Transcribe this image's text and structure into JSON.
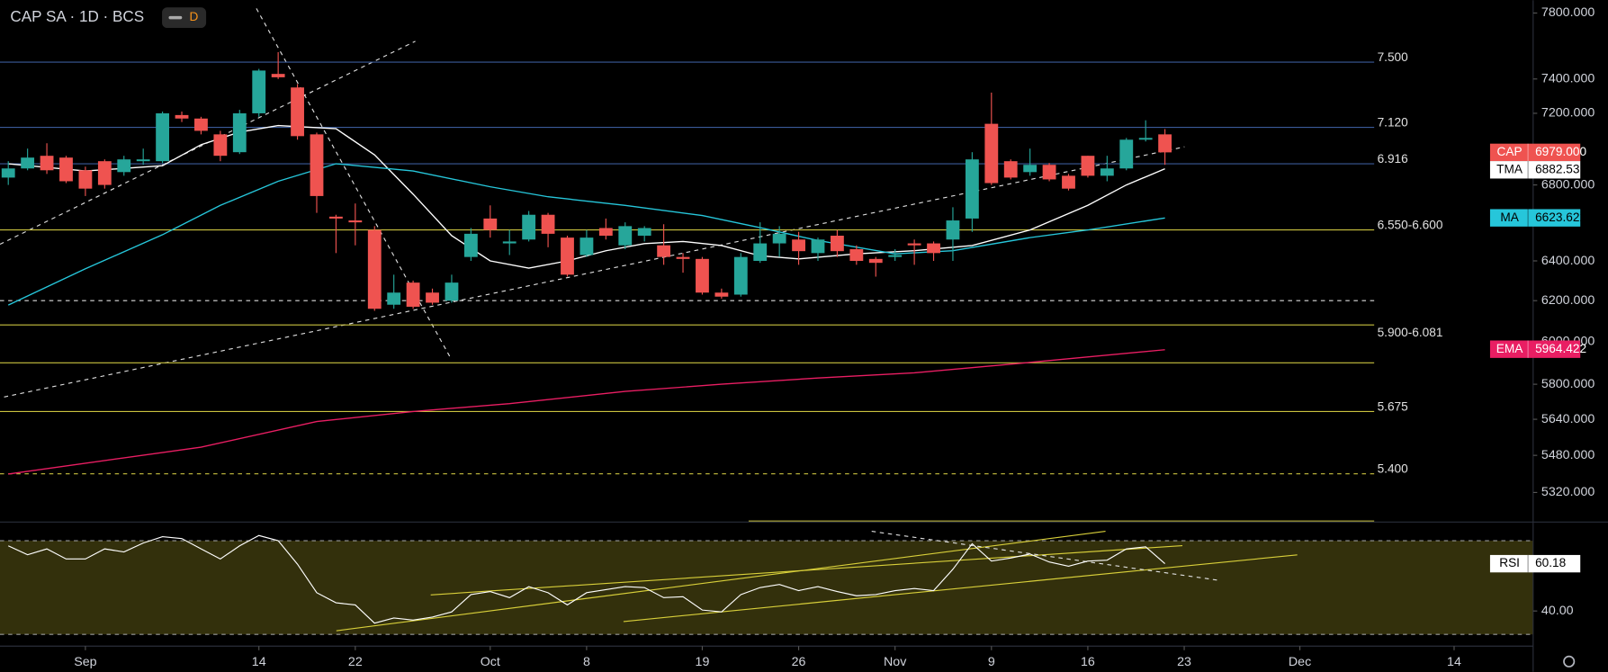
{
  "chart_data": {
    "type": "candlestick",
    "title": "CAP SA · 1D · BCS",
    "badge": "D",
    "up_color": "#26a69a",
    "down_color": "#ef5350",
    "log_scale": true,
    "open": [
      6840,
      6890,
      6960,
      6950,
      6880,
      6930,
      6870,
      6930,
      6930,
      7190,
      7170,
      7080,
      6980,
      7200,
      7430,
      7350,
      7080,
      6630,
      6610,
      6560,
      6180,
      6290,
      6240,
      6200,
      6420,
      6620,
      6490,
      6510,
      6640,
      6520,
      6430,
      6570,
      6480,
      6530,
      6480,
      6420,
      6410,
      6240,
      6230,
      6400,
      6490,
      6510,
      6440,
      6530,
      6460,
      6410,
      6420,
      6490,
      6490,
      6510,
      6620,
      7140,
      6930,
      6870,
      6910,
      6850,
      6960,
      6850,
      6890,
      7050,
      7080
    ],
    "high": [
      6930,
      7000,
      7030,
      6960,
      6900,
      6940,
      6960,
      7000,
      7210,
      7210,
      7180,
      7100,
      7220,
      7460,
      7560,
      7370,
      7090,
      6640,
      6700,
      6580,
      6330,
      6300,
      6260,
      6330,
      6570,
      6690,
      6560,
      6660,
      6650,
      6530,
      6560,
      6620,
      6600,
      6580,
      6590,
      6440,
      6420,
      6260,
      6440,
      6600,
      6580,
      6550,
      6520,
      6560,
      6480,
      6420,
      6460,
      6510,
      6500,
      6680,
      6980,
      7320,
      6940,
      7000,
      6920,
      6860,
      6960,
      6960,
      7060,
      7160,
      7110
    ],
    "low": [
      6800,
      6880,
      6860,
      6810,
      6740,
      6780,
      6850,
      6910,
      6920,
      7150,
      7080,
      6930,
      6970,
      7180,
      7400,
      7050,
      6650,
      6440,
      6480,
      6150,
      6160,
      6160,
      6180,
      6190,
      6400,
      6520,
      6430,
      6500,
      6470,
      6320,
      6420,
      6510,
      6460,
      6500,
      6380,
      6340,
      6230,
      6210,
      6220,
      6390,
      6420,
      6380,
      6400,
      6420,
      6380,
      6320,
      6400,
      6380,
      6400,
      6400,
      6550,
      6800,
      6830,
      6850,
      6820,
      6770,
      6840,
      6820,
      6880,
      7040,
      6910
    ],
    "close": [
      6890,
      6950,
      6880,
      6820,
      6780,
      6800,
      6940,
      6940,
      7200,
      7170,
      7100,
      6960,
      7200,
      7450,
      7410,
      7070,
      6740,
      6620,
      6600,
      6160,
      6240,
      6170,
      6190,
      6290,
      6540,
      6560,
      6500,
      6640,
      6540,
      6330,
      6520,
      6530,
      6580,
      6570,
      6420,
      6410,
      6240,
      6220,
      6420,
      6490,
      6540,
      6450,
      6510,
      6450,
      6400,
      6390,
      6430,
      6480,
      6440,
      6610,
      6940,
      6810,
      6840,
      6910,
      6830,
      6780,
      6850,
      6890,
      7050,
      7060,
      6979
    ],
    "ylim": [
      5200,
      7880
    ],
    "yticks": [
      {
        "value": 7800,
        "label": "7800.000"
      },
      {
        "value": 7400,
        "label": "7400.000"
      },
      {
        "value": 7200,
        "label": "7200.000"
      },
      {
        "value": 6800,
        "label": "6800.000"
      },
      {
        "value": 6400,
        "label": "6400.000"
      },
      {
        "value": 6200,
        "label": "6200.000"
      },
      {
        "value": 6000,
        "label": "6000.000"
      },
      {
        "value": 5800,
        "label": "5800.000"
      },
      {
        "value": 5640,
        "label": "5640.000"
      },
      {
        "value": 5480,
        "label": "5480.000"
      },
      {
        "value": 5320,
        "label": "5320.000"
      }
    ],
    "xlim": [
      -0.43,
      79.1
    ],
    "xticks": [
      {
        "value": 4,
        "label": "Sep"
      },
      {
        "value": 13,
        "label": "14"
      },
      {
        "value": 18,
        "label": "22"
      },
      {
        "value": 25,
        "label": "Oct"
      },
      {
        "value": 30,
        "label": "8"
      },
      {
        "value": 36,
        "label": "19"
      },
      {
        "value": 41,
        "label": "26"
      },
      {
        "value": 46,
        "label": "Nov"
      },
      {
        "value": 51,
        "label": "9"
      },
      {
        "value": 56,
        "label": "16"
      },
      {
        "value": 61,
        "label": "23"
      },
      {
        "value": 67,
        "label": "Dec"
      },
      {
        "value": 75,
        "label": "14"
      }
    ],
    "last": {
      "name": "CAP",
      "value": 6979,
      "label": "6979.000",
      "color": "#ef5350"
    },
    "lines": [
      {
        "name": "TMA",
        "color": "#ffffff",
        "tag_text": "#000000",
        "x": [
          0,
          4,
          8,
          10,
          12,
          14,
          17,
          19,
          21,
          23,
          25,
          27,
          29,
          31,
          33,
          35,
          37,
          39,
          41,
          44,
          47,
          50,
          53,
          56,
          58,
          60
        ],
        "values": [
          6916,
          6876,
          6905,
          7022,
          7093,
          7130,
          7112,
          6965,
          6750,
          6530,
          6400,
          6363,
          6400,
          6452,
          6489,
          6500,
          6479,
          6426,
          6410,
          6436,
          6452,
          6479,
          6560,
          6690,
          6800,
          6888
        ],
        "tag": {
          "value": 6882.531,
          "label": "6882.531"
        }
      },
      {
        "name": "MA",
        "color": "#26c6da",
        "tag_text": "#000000",
        "x": [
          0,
          4,
          8,
          11,
          14,
          17,
          21,
          25,
          28,
          32,
          36,
          39,
          42,
          46,
          49,
          53,
          56,
          60
        ],
        "values": [
          6178,
          6360,
          6535,
          6690,
          6820,
          6916,
          6876,
          6790,
          6736,
          6690,
          6636,
          6572,
          6505,
          6436,
          6452,
          6520,
          6560,
          6623
        ],
        "tag": {
          "value": 6623.622,
          "label": "6623.622"
        }
      },
      {
        "name": "EMA",
        "color": "#e91e63",
        "tag_text": "#ffffff",
        "x": [
          0,
          10,
          16,
          21,
          26,
          32,
          37,
          42,
          47,
          53,
          60
        ],
        "values": [
          5399,
          5516,
          5630,
          5675,
          5711,
          5767,
          5800,
          5829,
          5853,
          5902,
          5962
        ],
        "tag": {
          "value": 5964.422,
          "label": "5964.422"
        }
      }
    ],
    "levels": [
      {
        "value": 7500,
        "label": "7.500",
        "color": "#3a5a98",
        "dashed": false
      },
      {
        "value": 7120,
        "label": "7.120",
        "color": "#3a5a98",
        "dashed": false
      },
      {
        "value": 6916,
        "label": "6.916",
        "color": "#3a5a98",
        "dashed": false
      },
      {
        "value": 6560,
        "label": "6.550-6.600",
        "color": "#c9c23f",
        "dashed": false
      },
      {
        "value": 6200,
        "color": "#dddddd",
        "dashed": true
      },
      {
        "value": 6081,
        "label": "5.900-6.081",
        "color": "#c9c23f",
        "dashed": false,
        "below": true
      },
      {
        "value": 5900,
        "color": "#c9c23f",
        "dashed": false
      },
      {
        "value": 5675,
        "label": "5.675",
        "color": "#c9c23f",
        "dashed": false
      },
      {
        "value": 5400,
        "label": "5.400",
        "color": "#c9c23f",
        "dashed": true
      }
    ],
    "rsi": {
      "name": "RSI",
      "color": "#ffffff",
      "values": [
        67.8,
        64.0,
        66.5,
        62.2,
        62.2,
        66.5,
        65.2,
        69.0,
        71.7,
        70.9,
        66.5,
        62.2,
        67.8,
        72.2,
        70.0,
        60.0,
        47.8,
        43.5,
        42.6,
        34.8,
        37.0,
        36.1,
        37.4,
        39.6,
        47.0,
        48.3,
        45.7,
        50.4,
        47.8,
        42.6,
        47.8,
        49.1,
        50.4,
        50.0,
        45.7,
        46.1,
        40.4,
        39.6,
        47.0,
        50.0,
        51.3,
        48.7,
        50.4,
        48.3,
        46.5,
        47.0,
        48.7,
        49.6,
        48.7,
        57.8,
        68.7,
        61.3,
        62.6,
        64.3,
        60.9,
        59.1,
        61.3,
        61.7,
        66.5,
        67.4,
        60.18
      ],
      "ylim": [
        25,
        77.5
      ],
      "yticks": [
        {
          "value": 40,
          "label": "40.00"
        }
      ],
      "bands": [
        70,
        30
      ],
      "band_color": "#33300c",
      "tag": {
        "value": 60.18,
        "label": "60.18"
      }
    }
  }
}
